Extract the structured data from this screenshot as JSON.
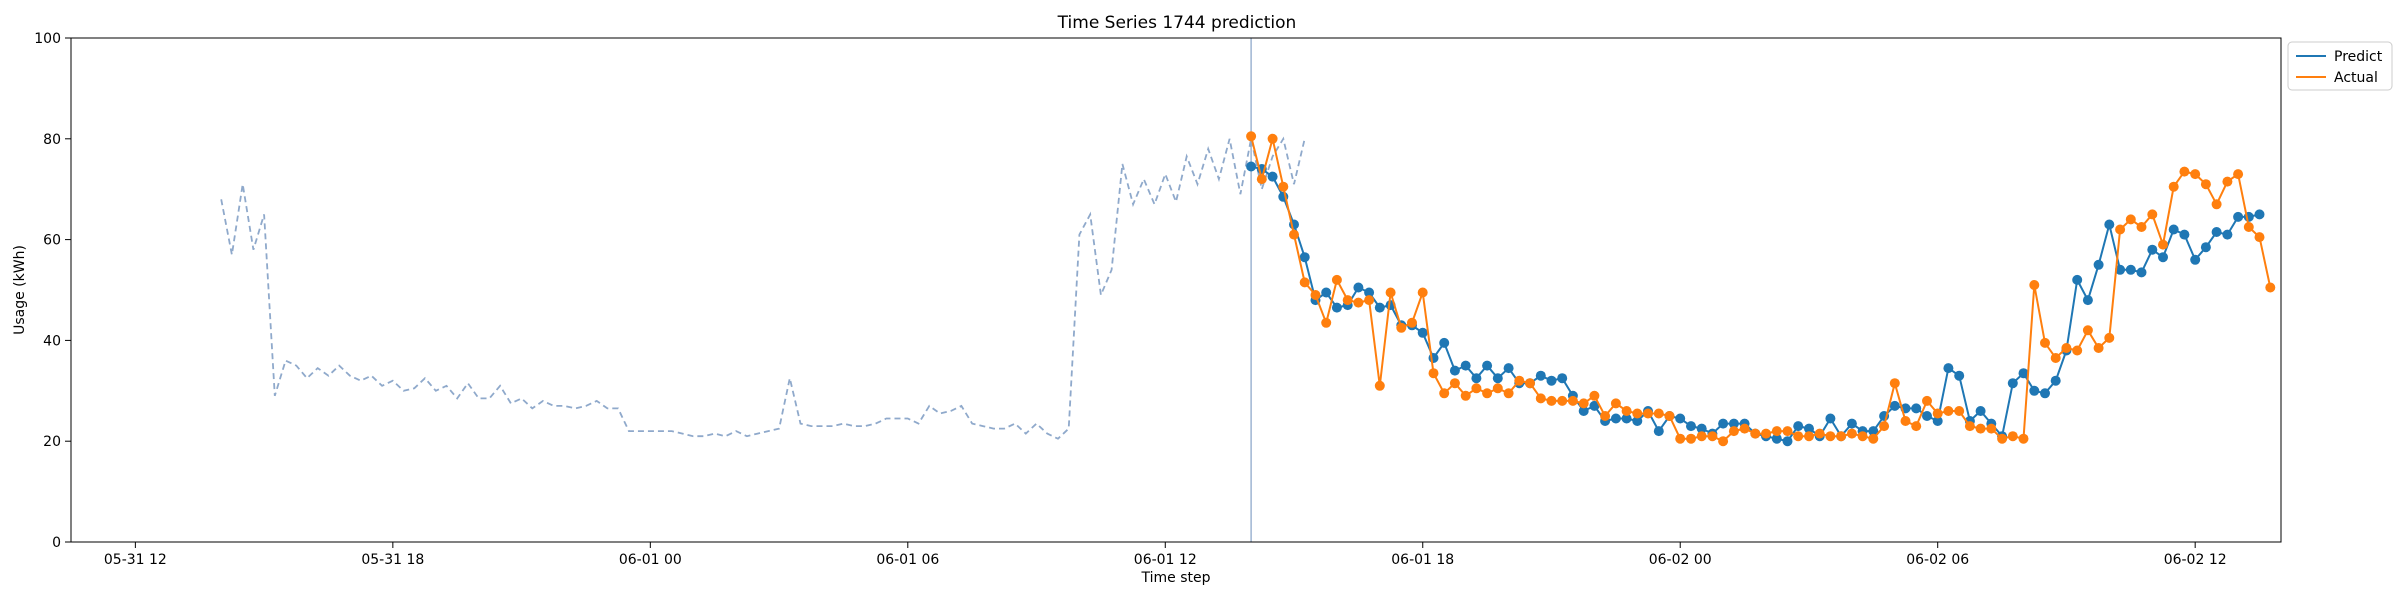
{
  "chart_data": {
    "type": "line",
    "title": "Time Series 1744 prediction",
    "xlabel": "Time step",
    "ylabel": "Usage (kWh)",
    "ylim": [
      0,
      100
    ],
    "xlim": [
      -3.0,
      100.0
    ],
    "y_ticks": [
      0,
      20,
      40,
      60,
      80,
      100
    ],
    "x_ticks": [
      {
        "pos": 0,
        "label": "05-31 12"
      },
      {
        "pos": 12,
        "label": "05-31 18"
      },
      {
        "pos": 24,
        "label": "06-01 00"
      },
      {
        "pos": 36,
        "label": "06-01 06"
      },
      {
        "pos": 48,
        "label": "06-01 12"
      },
      {
        "pos": 60,
        "label": "06-01 18"
      },
      {
        "pos": 72,
        "label": "06-02 00"
      },
      {
        "pos": 84,
        "label": "06-02 06"
      },
      {
        "pos": 96,
        "label": "06-02 12"
      }
    ],
    "forecast_start": 52,
    "legend": {
      "position": "top-right",
      "entries": [
        "Predict",
        "Actual"
      ]
    },
    "history": {
      "name": "History",
      "color": "#8fa9cb",
      "x_start": 4.0,
      "step": 0.5,
      "values": [
        68,
        57,
        71,
        58,
        65,
        29,
        36,
        35,
        32.5,
        34.5,
        33,
        35,
        33,
        32,
        33,
        31,
        32,
        30,
        30.5,
        32.5,
        30,
        31,
        28.5,
        31.5,
        28.5,
        28.5,
        31,
        27.5,
        28.5,
        26.5,
        28,
        27,
        27,
        26.5,
        27,
        28,
        26.5,
        26.5,
        22,
        22,
        22,
        22,
        22,
        21.5,
        21,
        21,
        21.5,
        21,
        22,
        21,
        21.5,
        22,
        22.5,
        32.5,
        23.5,
        23,
        23,
        23,
        23.5,
        23,
        23,
        23.5,
        24.5,
        24.5,
        24.5,
        23.5,
        27,
        25.5,
        26,
        27,
        23.5,
        23,
        22.5,
        22.5,
        23.5,
        21.5,
        23.5,
        21.5,
        20.5,
        22.5,
        61,
        65,
        49,
        54,
        75,
        67,
        72,
        67,
        73,
        67.5,
        76.5,
        71,
        78,
        72,
        80,
        69,
        80,
        70,
        76.5,
        80,
        71,
        80
      ]
    },
    "series": [
      {
        "name": "Predict",
        "color": "#1f77b4",
        "x_start": 52,
        "step": 0.5,
        "values": [
          74.5,
          74,
          72.5,
          68.5,
          63,
          56.5,
          48,
          49.5,
          46.5,
          47,
          50.5,
          49.5,
          46.5,
          47,
          43,
          43,
          41.5,
          36.5,
          39.5,
          34,
          35,
          32.5,
          35,
          32.5,
          34.5,
          31.5,
          31.5,
          33,
          32,
          32.5,
          29,
          26,
          27,
          24,
          24.5,
          24.5,
          24,
          26,
          22,
          25,
          24.5,
          23,
          22.5,
          21.5,
          23.5,
          23.5,
          23.5,
          21.5,
          21,
          20.5,
          20,
          23,
          22.5,
          21,
          24.5,
          21,
          23.5,
          22,
          22,
          25,
          27,
          26.5,
          26.5,
          25,
          24,
          34.5,
          33,
          24,
          26,
          23.5,
          21,
          31.5,
          33.5,
          30,
          29.5,
          32,
          38,
          52,
          48,
          55,
          63,
          54,
          54,
          53.5,
          58,
          56.5,
          62,
          61,
          56,
          58.5,
          61.5,
          61,
          64.5,
          64.5,
          65
        ]
      },
      {
        "name": "Actual",
        "color": "#ff7f0e",
        "x_start": 52,
        "step": 0.5,
        "values": [
          80.5,
          72,
          80,
          70.5,
          61,
          51.5,
          49,
          43.5,
          52,
          48,
          47.5,
          48,
          31,
          49.5,
          42.5,
          43.5,
          49.5,
          33.5,
          29.5,
          31.5,
          29,
          30.5,
          29.5,
          30.5,
          29.5,
          32,
          31.5,
          28.5,
          28,
          28,
          28,
          27.5,
          29,
          25,
          27.5,
          26,
          25.5,
          25.5,
          25.5,
          25,
          20.5,
          20.5,
          21,
          21,
          20,
          22,
          22.5,
          21.5,
          21.5,
          22,
          22,
          21,
          21,
          21.5,
          21,
          21,
          21.5,
          21,
          20.5,
          23,
          31.5,
          24,
          23,
          28,
          25.5,
          26,
          26,
          23,
          22.5,
          22.5,
          20.5,
          21,
          20.5,
          51,
          39.5,
          36.5,
          38.5,
          38,
          42,
          38.5,
          40.5,
          62,
          64,
          62.5,
          65,
          59,
          70.5,
          73.5,
          73,
          71,
          67,
          71.5,
          73,
          62.5,
          60.5,
          50.5
        ]
      }
    ]
  }
}
